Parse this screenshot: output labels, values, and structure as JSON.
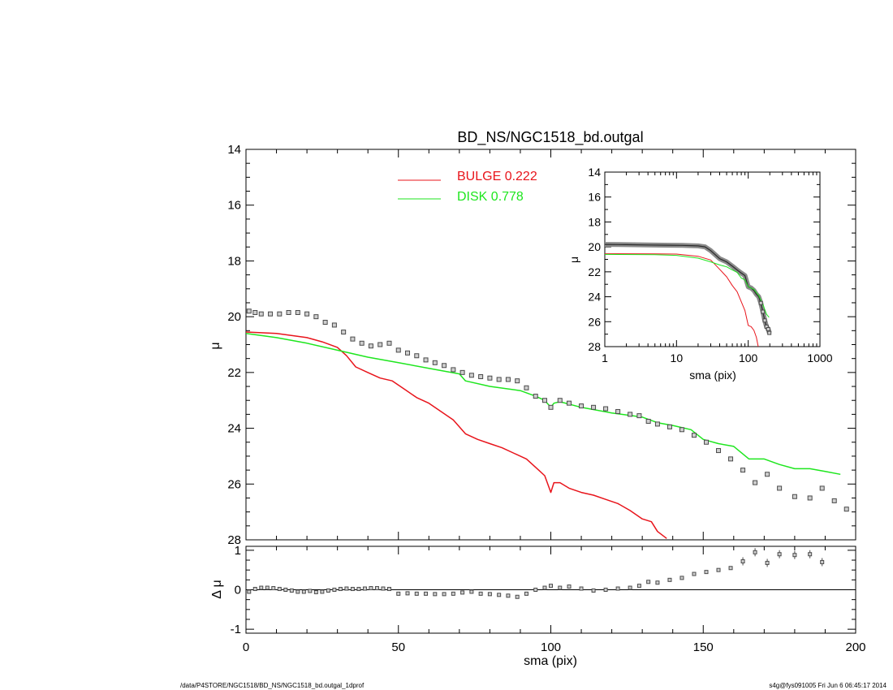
{
  "title": "BD_NS/NGC1518_bd.outgal",
  "footer": {
    "path": "/data/P4STORE/NGC1518/BD_NS/NGC1518_bd.outgal_1dprof",
    "stamp": "s4g@fys091005  Fri Jun  6 06:45:17 2014"
  },
  "colors": {
    "bulge": "#e8141b",
    "disk": "#1ee61e",
    "data": "#4a4a4a",
    "axis": "#000000"
  },
  "chart_data": [
    {
      "id": "main",
      "type": "line",
      "title": "BD_NS/NGC1518_bd.outgal",
      "xlabel": "",
      "ylabel": "μ",
      "xlim": [
        0,
        200
      ],
      "ylim": [
        28,
        14
      ],
      "yticks": [
        "14",
        "16",
        "18",
        "20",
        "22",
        "24",
        "26",
        "28"
      ],
      "legend_position": "top-center",
      "series": [
        {
          "name": "BULGE  0.222",
          "color": "#e8141b",
          "x": [
            0,
            10,
            20,
            25,
            30,
            33,
            36,
            40,
            44,
            48,
            52,
            56,
            60,
            64,
            68,
            72,
            76,
            80,
            84,
            88,
            92,
            96,
            98,
            100,
            101,
            103,
            106,
            110,
            114,
            118,
            122,
            126,
            130,
            133,
            135,
            138
          ],
          "y": [
            20.55,
            20.6,
            20.75,
            20.9,
            21.1,
            21.4,
            21.8,
            22.0,
            22.2,
            22.3,
            22.6,
            22.9,
            23.1,
            23.4,
            23.7,
            24.2,
            24.4,
            24.55,
            24.7,
            24.9,
            25.1,
            25.5,
            25.7,
            26.3,
            25.95,
            25.95,
            26.15,
            26.3,
            26.4,
            26.55,
            26.7,
            26.95,
            27.25,
            27.35,
            27.7,
            27.95
          ]
        },
        {
          "name": "DISK  0.778",
          "color": "#1ee61e",
          "x": [
            0,
            10,
            20,
            30,
            40,
            50,
            60,
            70,
            72,
            80,
            90,
            95,
            98,
            100,
            101,
            103,
            110,
            120,
            130,
            135,
            140,
            146,
            150,
            155,
            160,
            165,
            170,
            175,
            180,
            185,
            190,
            195
          ],
          "y": [
            20.6,
            20.75,
            20.95,
            21.2,
            21.45,
            21.65,
            21.85,
            22.05,
            22.3,
            22.5,
            22.65,
            22.85,
            23.0,
            23.25,
            23.1,
            23.05,
            23.25,
            23.45,
            23.6,
            23.8,
            23.9,
            24.05,
            24.4,
            24.55,
            24.65,
            25.1,
            25.1,
            25.3,
            25.45,
            25.45,
            25.55,
            25.65
          ]
        },
        {
          "name": "",
          "type": "scatter",
          "color": "#4a4a4a",
          "x": [
            1,
            3,
            5,
            8,
            11,
            14,
            17,
            20,
            23,
            26,
            29,
            32,
            35,
            38,
            41,
            44,
            47,
            50,
            53,
            56,
            59,
            62,
            65,
            68,
            71,
            74,
            77,
            80,
            83,
            86,
            89,
            92,
            95,
            98,
            100,
            103,
            106,
            110,
            114,
            118,
            122,
            126,
            129,
            132,
            135,
            139,
            143,
            147,
            151,
            155,
            159,
            163,
            167,
            171,
            175,
            180,
            185,
            189,
            193,
            197
          ],
          "y": [
            19.8,
            19.85,
            19.9,
            19.9,
            19.9,
            19.85,
            19.85,
            19.9,
            20.0,
            20.2,
            20.3,
            20.55,
            20.8,
            20.95,
            21.05,
            21.0,
            20.95,
            21.2,
            21.3,
            21.4,
            21.55,
            21.65,
            21.75,
            21.9,
            22.0,
            22.1,
            22.15,
            22.2,
            22.25,
            22.25,
            22.3,
            22.55,
            22.85,
            23.0,
            23.25,
            23.0,
            23.1,
            23.2,
            23.25,
            23.3,
            23.4,
            23.5,
            23.55,
            23.75,
            23.85,
            23.95,
            24.05,
            24.25,
            24.5,
            24.8,
            25.1,
            25.5,
            25.95,
            25.65,
            26.15,
            26.45,
            26.5,
            26.15,
            26.6,
            26.9
          ]
        }
      ]
    },
    {
      "id": "residual",
      "type": "scatter",
      "xlabel": "sma (pix)",
      "ylabel": "Δ μ",
      "xlim": [
        0,
        200
      ],
      "ylim": [
        -1,
        1
      ],
      "xticks": [
        "0",
        "50",
        "100",
        "150",
        "200"
      ],
      "yticks": [
        "1",
        "0",
        "-1"
      ],
      "series": [
        {
          "name": "",
          "x": [
            1,
            3,
            5,
            7,
            9,
            11,
            13,
            15,
            17,
            19,
            21,
            23,
            25,
            27,
            29,
            31,
            33,
            35,
            37,
            39,
            41,
            43,
            45,
            47,
            50,
            53,
            56,
            59,
            62,
            65,
            68,
            71,
            74,
            77,
            80,
            83,
            86,
            89,
            92,
            95,
            98,
            100,
            103,
            106,
            110,
            114,
            118,
            122,
            126,
            129,
            132,
            135,
            139,
            143,
            147,
            151,
            155,
            159,
            163,
            167,
            171,
            175,
            180,
            185,
            189
          ],
          "y": [
            -0.05,
            0.02,
            0.05,
            0.05,
            0.04,
            0.02,
            0.0,
            -0.02,
            -0.05,
            -0.05,
            -0.03,
            -0.06,
            -0.05,
            -0.02,
            0.0,
            0.02,
            0.03,
            0.02,
            0.02,
            0.03,
            0.04,
            0.04,
            0.03,
            0.02,
            -0.1,
            -0.09,
            -0.1,
            -0.1,
            -0.11,
            -0.11,
            -0.1,
            -0.07,
            -0.05,
            -0.1,
            -0.11,
            -0.13,
            -0.15,
            -0.18,
            -0.1,
            0.0,
            0.05,
            0.1,
            0.05,
            0.08,
            0.03,
            -0.02,
            0.0,
            0.03,
            0.05,
            0.1,
            0.2,
            0.18,
            0.25,
            0.3,
            0.4,
            0.45,
            0.5,
            0.55,
            0.72,
            0.95,
            0.68,
            0.9,
            0.88,
            0.9,
            0.7
          ]
        }
      ]
    },
    {
      "id": "inset",
      "type": "line",
      "xlabel": "sma (pix)",
      "ylabel": "μ",
      "xscale": "log",
      "xlim": [
        1,
        1000
      ],
      "ylim": [
        28,
        14
      ],
      "xticks": [
        "1",
        "10",
        "100",
        "1000"
      ],
      "yticks": [
        "14",
        "16",
        "18",
        "20",
        "22",
        "24",
        "26",
        "28"
      ],
      "series": [
        {
          "name": "",
          "color": "#4a4a4a",
          "x": [
            1,
            2,
            4,
            8,
            12,
            16,
            20,
            25,
            30,
            40,
            50,
            60,
            70,
            80,
            90,
            100,
            110,
            120,
            130,
            140,
            150,
            160,
            170,
            180,
            190,
            197
          ],
          "y": [
            19.8,
            19.82,
            19.85,
            19.87,
            19.88,
            19.9,
            19.92,
            20.0,
            20.3,
            20.95,
            21.2,
            21.55,
            21.85,
            22.1,
            22.3,
            23.2,
            23.3,
            23.5,
            23.8,
            24.0,
            24.5,
            25.2,
            25.9,
            26.4,
            26.6,
            26.9
          ]
        },
        {
          "name": "",
          "color": "#e8141b",
          "x": [
            1,
            5,
            10,
            20,
            30,
            40,
            50,
            60,
            70,
            80,
            90,
            100,
            110,
            120,
            130,
            138
          ],
          "y": [
            20.55,
            20.56,
            20.58,
            20.75,
            21.05,
            21.8,
            22.4,
            23.1,
            23.6,
            24.4,
            25.1,
            26.3,
            26.4,
            26.7,
            27.25,
            28.0
          ]
        },
        {
          "name": "",
          "color": "#1ee61e",
          "x": [
            1,
            5,
            10,
            20,
            30,
            40,
            50,
            60,
            70,
            80,
            90,
            100,
            120,
            140,
            160,
            180,
            195
          ],
          "y": [
            20.6,
            20.62,
            20.68,
            20.9,
            21.2,
            21.45,
            21.6,
            21.85,
            22.05,
            22.5,
            22.65,
            23.2,
            23.4,
            23.9,
            24.6,
            25.4,
            25.65
          ]
        }
      ]
    }
  ]
}
